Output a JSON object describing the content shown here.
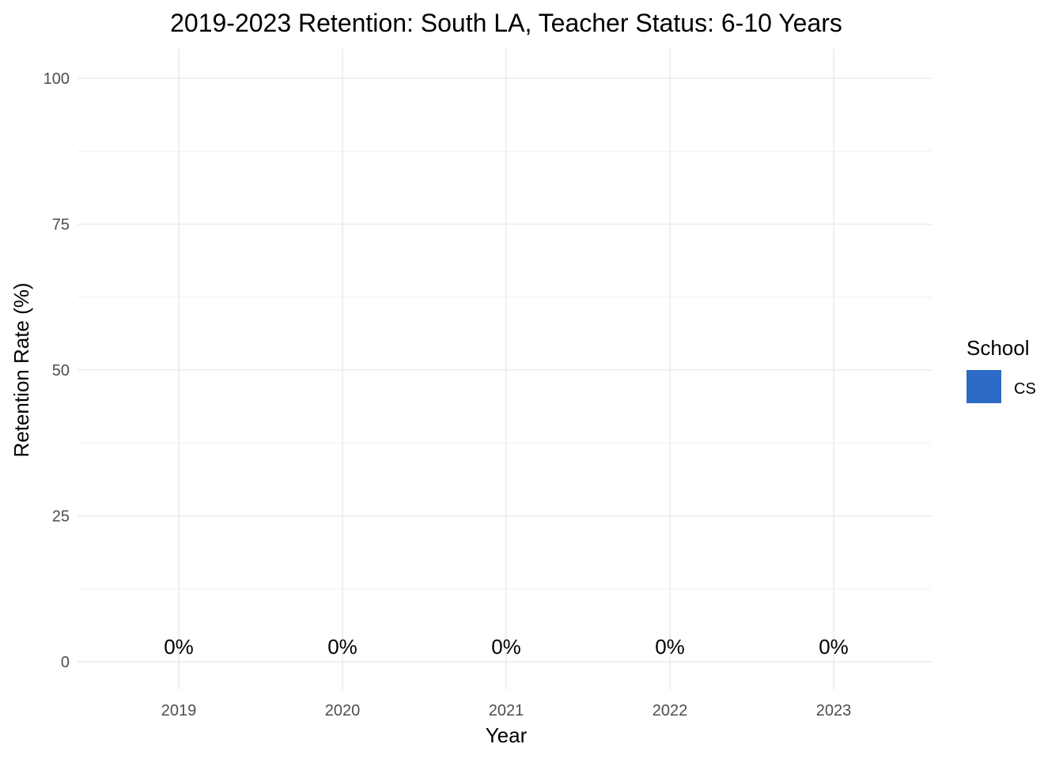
{
  "chart_data": {
    "type": "bar",
    "title": "2019-2023 Retention: South LA, Teacher Status: 6-10 Years",
    "xlabel": "Year",
    "ylabel": "Retention Rate (%)",
    "categories": [
      "2019",
      "2020",
      "2021",
      "2022",
      "2023"
    ],
    "series": [
      {
        "name": "CS",
        "color": "#2e6bc6",
        "values": [
          0,
          0,
          0,
          0,
          0
        ]
      }
    ],
    "data_labels": [
      "0%",
      "0%",
      "0%",
      "0%",
      "0%"
    ],
    "ylim": [
      0,
      100
    ],
    "y_ticks": [
      0,
      25,
      50,
      75,
      100
    ],
    "y_tick_labels": [
      "0",
      "25",
      "50",
      "75",
      "100"
    ],
    "grid": true,
    "legend": {
      "title": "School",
      "position": "right"
    }
  }
}
